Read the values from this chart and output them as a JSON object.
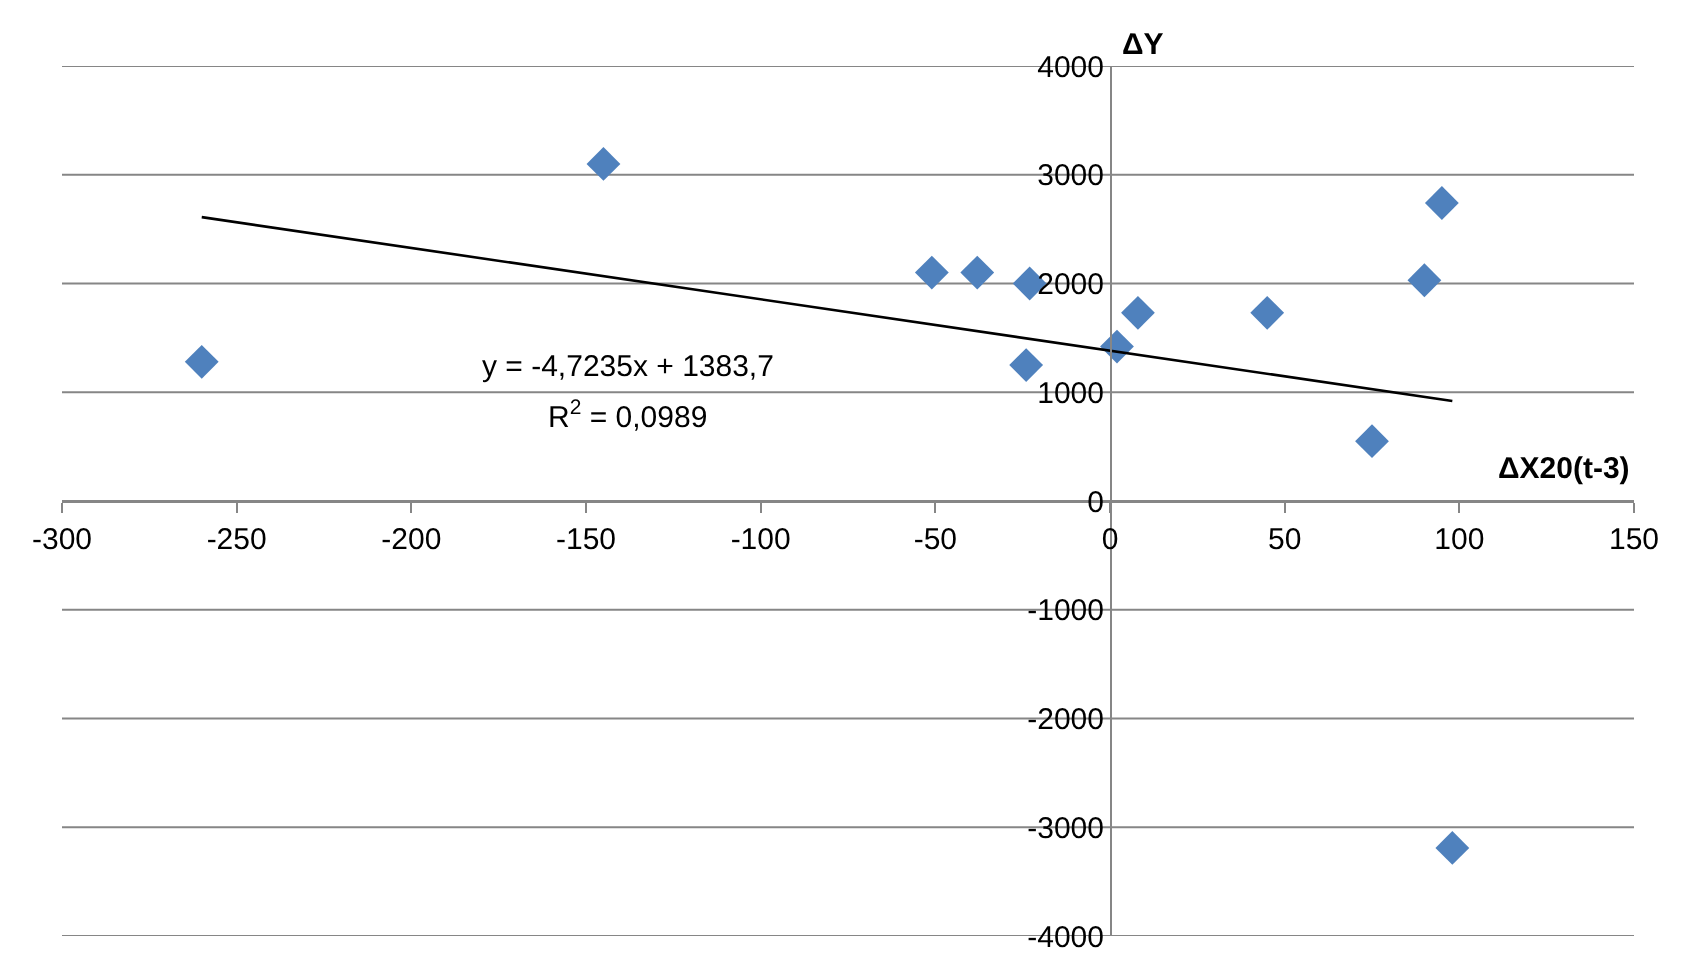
{
  "chart_data": {
    "type": "scatter",
    "xlabel": "ΔX20(t-3)",
    "ylabel": "ΔY",
    "series": [
      {
        "color": "#4f81bd",
        "marker": "diamond",
        "x": [
          -260,
          -145,
          -51,
          -38,
          -23,
          -24,
          2,
          8,
          45,
          75,
          90,
          95,
          98
        ],
        "values": [
          1280,
          3100,
          2100,
          2100,
          2000,
          1250,
          1420,
          1730,
          1730,
          550,
          2030,
          2740,
          -3190
        ]
      },
      {
        "type": "line",
        "color": "#000000",
        "marker": "none",
        "x": [
          -260,
          98
        ],
        "values": [
          2610,
          920
        ]
      }
    ],
    "annotations": [
      "y = -4,7235x + 1383,7",
      "R$^{2}$ = 0,0989"
    ],
    "xlim": [
      -300,
      150
    ],
    "xticks": [
      -300,
      -250,
      -200,
      -150,
      -100,
      -50,
      0,
      50,
      100,
      150
    ],
    "ylim": [
      -4000,
      4000
    ],
    "yticks": [
      -4000,
      -3000,
      -2000,
      -1000,
      0,
      1000,
      2000,
      3000,
      4000
    ],
    "grid": "y"
  }
}
